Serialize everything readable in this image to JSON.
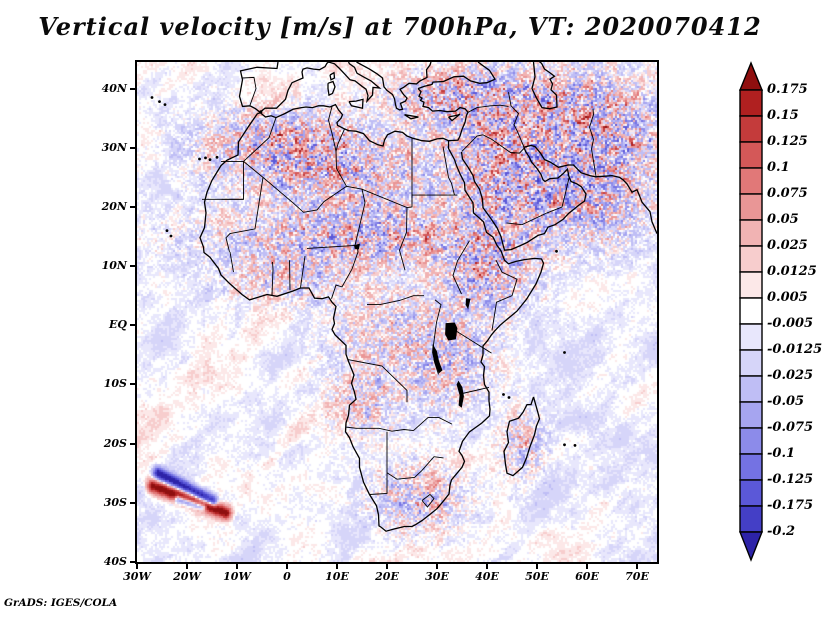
{
  "title": "Vertical velocity [m/s] at 700hPa, VT: 2020070412",
  "credit": "GrADS: IGES/COLA",
  "axes": {
    "y": {
      "labels": [
        "40N",
        "30N",
        "20N",
        "10N",
        "EQ",
        "10S",
        "20S",
        "30S",
        "40S"
      ],
      "values": [
        40,
        30,
        20,
        10,
        0,
        -10,
        -20,
        -30,
        -40
      ]
    },
    "x": {
      "labels": [
        "30W",
        "20W",
        "10W",
        "0",
        "10E",
        "20E",
        "30E",
        "40E",
        "50E",
        "60E",
        "70E"
      ],
      "values": [
        -30,
        -20,
        -10,
        0,
        10,
        20,
        30,
        40,
        50,
        60,
        70
      ]
    }
  },
  "colorbar": {
    "labels": [
      "0.175",
      "0.15",
      "0.125",
      "0.1",
      "0.075",
      "0.05",
      "0.025",
      "0.0125",
      "0.005",
      "-0.005",
      "-0.0125",
      "-0.025",
      "-0.05",
      "-0.075",
      "-0.1",
      "-0.125",
      "-0.175",
      "-0.2"
    ],
    "colors_top_to_bottom": [
      "#8f0f0f",
      "#b02020",
      "#c43b3b",
      "#d45858",
      "#e17878",
      "#e99696",
      "#f1b3b3",
      "#f7cdcd",
      "#fce8e8",
      "#ffffff",
      "#e8e7fc",
      "#d6d5f9",
      "#bfbef5",
      "#a6a5f0",
      "#8c8bea",
      "#7472e3",
      "#5b58d8",
      "#443fc6",
      "#2d23a8"
    ]
  },
  "chart_data": {
    "type": "heatmap",
    "title": "Vertical velocity [m/s] at 700hPa, VT: 2020070412",
    "variable": "Vertical velocity",
    "units": "m/s",
    "pressure_level": "700hPa",
    "valid_time": "2020070412",
    "projection": "lat-lon map of Africa, Middle East and surrounding oceans",
    "lon_range": [
      -30,
      74
    ],
    "lat_range": [
      -40,
      44.5
    ],
    "x_tick_values": [
      -30,
      -20,
      -10,
      0,
      10,
      20,
      30,
      40,
      50,
      60,
      70
    ],
    "y_tick_values": [
      40,
      30,
      20,
      10,
      0,
      -10,
      -20,
      -30,
      -40
    ],
    "contour_levels": [
      0.175,
      0.15,
      0.125,
      0.1,
      0.075,
      0.05,
      0.025,
      0.0125,
      0.005,
      -0.005,
      -0.0125,
      -0.025,
      -0.05,
      -0.075,
      -0.1,
      -0.125,
      -0.175,
      -0.2
    ],
    "palette_top_to_bottom": [
      "#8f0f0f",
      "#b02020",
      "#c43b3b",
      "#d45858",
      "#e17878",
      "#e99696",
      "#f1b3b3",
      "#f7cdcd",
      "#fce8e8",
      "#ffffff",
      "#e8e7fc",
      "#d6d5f9",
      "#bfbef5",
      "#a6a5f0",
      "#8c8bea",
      "#7472e3",
      "#5b58d8",
      "#443fc6",
      "#2d23a8"
    ],
    "legend_position": "right vertical colorbar with end-arrow triangles",
    "grid": false,
    "notable_features": [
      "Fine red/blue mottled field, strongest (saturated) over Atlas Mountains, Sahel, Ethiopian Highlands, Arabia, Turkey and Iran",
      "Smoother pale NE-SW oriented wave streaks over Atlantic and Indian Oceans",
      "Intense paired dark-red / dark-blue frontal streaks near 30S, 15-25W in the South Atlantic",
      "Black coastlines, country borders and lakes drawn over the shaded field"
    ]
  }
}
